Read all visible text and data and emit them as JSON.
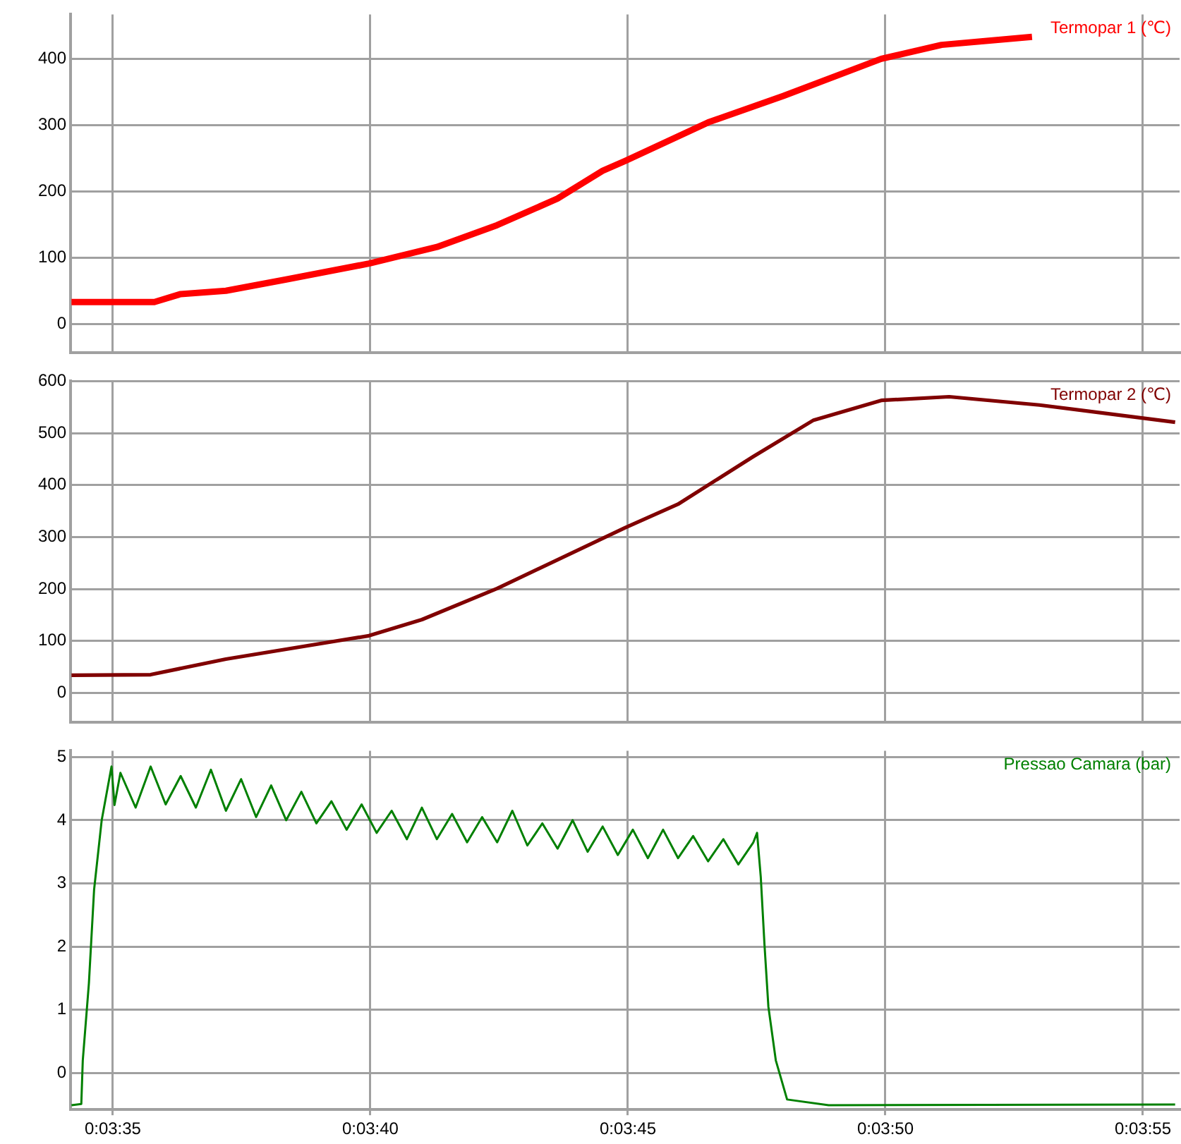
{
  "chart_data": [
    {
      "type": "line",
      "x": [
        0.059499,
        0.059946,
        0.060088,
        0.060332,
        0.060657,
        0.061104,
        0.06147,
        0.061795,
        0.06212,
        0.062364,
        0.062486,
        0.062933,
        0.063339,
        0.063867,
        0.064192,
        0.06468
      ],
      "series": [
        {
          "name": "Termopar 1 (℃)",
          "color": "#ff0000",
          "values": [
            33,
            33,
            45,
            50,
            67,
            91,
            116,
            149,
            189,
            231,
            246,
            304,
            344,
            400,
            421,
            433
          ]
        }
      ],
      "xlim": [
        0.059494,
        0.065476
      ],
      "xticks": [
        {
          "value": 0.059722,
          "label": null
        },
        {
          "value": 0.061111,
          "label": null
        },
        {
          "value": 0.0625,
          "label": null
        },
        {
          "value": 0.063889,
          "label": null
        },
        {
          "value": 0.065278,
          "label": null
        }
      ],
      "ylim": [
        -43,
        467
      ],
      "yticks": [
        0,
        100,
        200,
        300,
        400
      ],
      "grid": true,
      "legend": "top right",
      "tick_labels": "y"
    },
    {
      "type": "line",
      "x": [
        0.059499,
        0.059926,
        0.060332,
        0.061104,
        0.061389,
        0.061795,
        0.062486,
        0.06277,
        0.063177,
        0.063502,
        0.063867,
        0.064233,
        0.06472,
        0.065452
      ],
      "series": [
        {
          "name": "Termopar 2 (℃)",
          "color": "#800000",
          "values": [
            34,
            35,
            65,
            110,
            141,
            201,
            318,
            363,
            455,
            525,
            563,
            570,
            554,
            521
          ]
        }
      ],
      "xlim": [
        0.059494,
        0.065476
      ],
      "xticks": [
        {
          "value": 0.059722,
          "label": null
        },
        {
          "value": 0.061111,
          "label": null
        },
        {
          "value": 0.0625,
          "label": null
        },
        {
          "value": 0.063889,
          "label": null
        },
        {
          "value": 0.065278,
          "label": null
        }
      ],
      "ylim": [
        -56,
        600
      ],
      "yticks": [
        0,
        100,
        200,
        300,
        400,
        500,
        600
      ],
      "grid": true,
      "legend": "top right",
      "tick_labels": "y"
    },
    {
      "type": "line",
      "x": [
        0.059499,
        0.059552,
        0.05956,
        0.059593,
        0.059621,
        0.059662,
        0.059715,
        0.059731,
        0.059763,
        0.059845,
        0.059926,
        0.060007,
        0.060088,
        0.06017,
        0.060251,
        0.060332,
        0.060414,
        0.060495,
        0.060576,
        0.060657,
        0.060739,
        0.06082,
        0.060901,
        0.060983,
        0.061064,
        0.061145,
        0.061226,
        0.061308,
        0.061389,
        0.06147,
        0.061552,
        0.061633,
        0.061714,
        0.061795,
        0.061877,
        0.061958,
        0.062039,
        0.062121,
        0.062202,
        0.062283,
        0.062364,
        0.062446,
        0.062527,
        0.062608,
        0.06269,
        0.062771,
        0.062852,
        0.062933,
        0.063015,
        0.063096,
        0.063177,
        0.063197,
        0.063217,
        0.063237,
        0.063258,
        0.063298,
        0.063359,
        0.063583,
        0.065452
      ],
      "series": [
        {
          "name": "Pressao Camara (bar)",
          "color": "#008000",
          "values": [
            -0.51,
            -0.49,
            0.2,
            1.42,
            2.9,
            4.0,
            4.85,
            4.24,
            4.75,
            4.2,
            4.85,
            4.25,
            4.7,
            4.2,
            4.8,
            4.15,
            4.65,
            4.05,
            4.55,
            4.0,
            4.45,
            3.95,
            4.3,
            3.85,
            4.25,
            3.8,
            4.15,
            3.7,
            4.2,
            3.7,
            4.1,
            3.65,
            4.05,
            3.65,
            4.15,
            3.6,
            3.95,
            3.55,
            4.0,
            3.5,
            3.9,
            3.45,
            3.85,
            3.4,
            3.85,
            3.4,
            3.75,
            3.35,
            3.7,
            3.3,
            3.65,
            3.8,
            3.1,
            2.03,
            1.05,
            0.2,
            -0.42,
            -0.51,
            -0.5
          ]
        }
      ],
      "xlim": [
        0.059494,
        0.065476
      ],
      "xticks": [
        {
          "value": 0.059722,
          "label": "0:03:35"
        },
        {
          "value": 0.061111,
          "label": "0:03:40"
        },
        {
          "value": 0.0625,
          "label": "0:03:45"
        },
        {
          "value": 0.063889,
          "label": "0:03:50"
        },
        {
          "value": 0.065278,
          "label": "0:03:55"
        }
      ],
      "ylim": [
        -0.58,
        5.1
      ],
      "yticks": [
        0,
        1,
        2,
        3,
        4,
        5
      ],
      "grid": true,
      "legend": "top right"
    }
  ]
}
